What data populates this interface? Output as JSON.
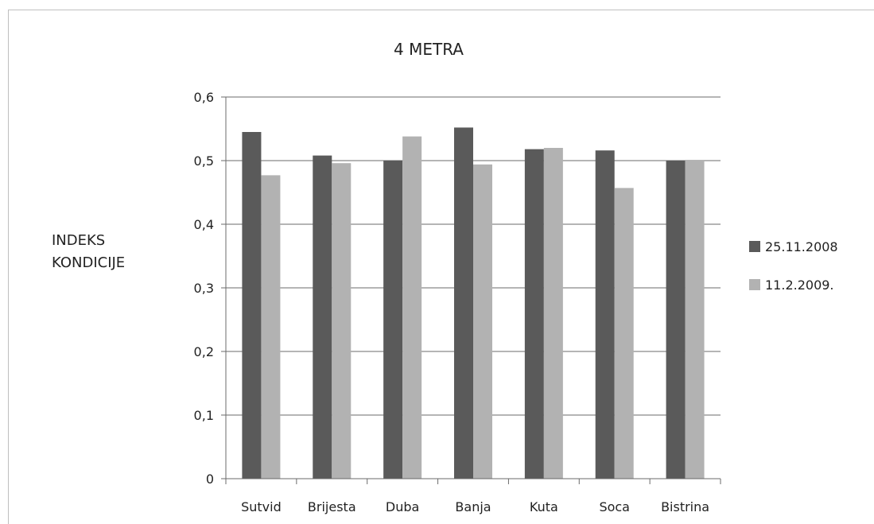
{
  "chart_data": {
    "type": "bar",
    "title": "4 METRA",
    "ylabel_lines": [
      "INDEKS",
      "KONDICIJE"
    ],
    "xlabel": "",
    "categories": [
      "Sutvid",
      "Brijesta",
      "Duba",
      "Banja",
      "Kuta",
      "Soca",
      "Bistrina"
    ],
    "series": [
      {
        "name": "25.11.2008",
        "color": "#5a5a5a",
        "values": [
          0.545,
          0.508,
          0.5,
          0.552,
          0.518,
          0.516,
          0.5
        ]
      },
      {
        "name": "11.2.2009.",
        "color": "#b2b2b2",
        "values": [
          0.477,
          0.496,
          0.538,
          0.494,
          0.52,
          0.457,
          0.5
        ]
      }
    ],
    "ylim": [
      0,
      0.6
    ],
    "yticks": [
      0,
      0.1,
      0.2,
      0.3,
      0.4,
      0.5,
      0.6
    ],
    "ytick_labels": [
      "0",
      "0,1",
      "0,2",
      "0,3",
      "0,4",
      "0,5",
      "0,6"
    ],
    "grid": true,
    "legend_position": "right"
  }
}
